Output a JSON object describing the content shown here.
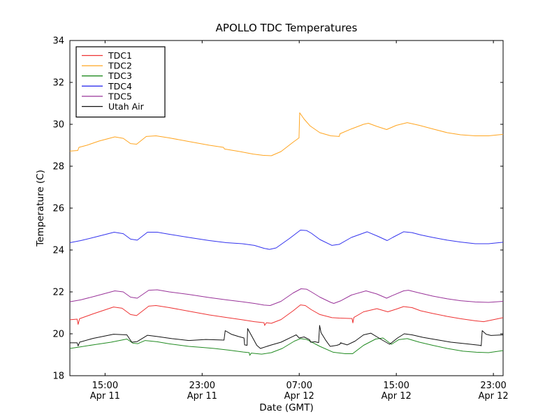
{
  "window": {
    "title": "APOLLO TDC Temperatures"
  },
  "colors": {
    "background": "#ffffff",
    "axis": "#000000",
    "text": "#000000",
    "tdc1": "#ee3333",
    "tdc2": "#ffa520",
    "tdc3": "#228b22",
    "tdc4": "#3333ee",
    "tdc5": "#993399",
    "utah_air": "#111111"
  },
  "chart_data": {
    "type": "line",
    "title": "APOLLO TDC Temperatures",
    "xlabel": "Date (GMT)",
    "ylabel": "Temperature (C)",
    "x_unit": "hours since Apr 11 00:00 GMT",
    "xlim": [
      12.1,
      47.8
    ],
    "ylim": [
      18,
      34
    ],
    "grid": false,
    "legend_position": "upper left",
    "yticks": [
      18,
      20,
      22,
      24,
      26,
      28,
      30,
      32,
      34
    ],
    "xticks": [
      {
        "value": 15,
        "label": "15:00",
        "sublabel": "Apr 11"
      },
      {
        "value": 23,
        "label": "23:00",
        "sublabel": "Apr 11"
      },
      {
        "value": 31,
        "label": "07:00",
        "sublabel": "Apr 12"
      },
      {
        "value": 39,
        "label": "15:00",
        "sublabel": "Apr 12"
      },
      {
        "value": 47,
        "label": "23:00",
        "sublabel": "Apr 12"
      }
    ],
    "series": [
      {
        "name": "TDC1",
        "color": "#ee3333",
        "points": [
          [
            12.1,
            20.67
          ],
          [
            12.7,
            20.7
          ],
          [
            12.78,
            20.45
          ],
          [
            12.9,
            20.72
          ],
          [
            14.0,
            20.95
          ],
          [
            15.7,
            21.28
          ],
          [
            16.4,
            21.22
          ],
          [
            17.1,
            20.92
          ],
          [
            17.6,
            20.87
          ],
          [
            18.6,
            21.32
          ],
          [
            19.2,
            21.35
          ],
          [
            20.3,
            21.25
          ],
          [
            21.9,
            21.08
          ],
          [
            23.6,
            20.9
          ],
          [
            25.0,
            20.78
          ],
          [
            26.3,
            20.67
          ],
          [
            27.3,
            20.58
          ],
          [
            28.1,
            20.53
          ],
          [
            28.15,
            20.4
          ],
          [
            28.3,
            20.53
          ],
          [
            28.7,
            20.5
          ],
          [
            29.5,
            20.68
          ],
          [
            30.5,
            21.1
          ],
          [
            31.1,
            21.38
          ],
          [
            31.5,
            21.35
          ],
          [
            32.0,
            21.15
          ],
          [
            32.7,
            20.92
          ],
          [
            33.7,
            20.77
          ],
          [
            34.3,
            20.75
          ],
          [
            35.35,
            20.73
          ],
          [
            35.42,
            20.52
          ],
          [
            35.5,
            20.78
          ],
          [
            36.3,
            21.05
          ],
          [
            37.4,
            21.2
          ],
          [
            38.3,
            21.05
          ],
          [
            39.0,
            21.18
          ],
          [
            39.6,
            21.3
          ],
          [
            40.3,
            21.25
          ],
          [
            41.0,
            21.1
          ],
          [
            42.0,
            20.97
          ],
          [
            43.2,
            20.83
          ],
          [
            44.3,
            20.72
          ],
          [
            45.5,
            20.62
          ],
          [
            46.2,
            20.58
          ],
          [
            46.8,
            20.65
          ],
          [
            47.8,
            20.77
          ]
        ]
      },
      {
        "name": "TDC2",
        "color": "#ffa520",
        "points": [
          [
            12.1,
            28.72
          ],
          [
            12.75,
            28.75
          ],
          [
            12.85,
            28.9
          ],
          [
            13.5,
            29.0
          ],
          [
            14.5,
            29.2
          ],
          [
            15.8,
            29.4
          ],
          [
            16.5,
            29.33
          ],
          [
            17.1,
            29.08
          ],
          [
            17.6,
            29.05
          ],
          [
            18.4,
            29.42
          ],
          [
            19.2,
            29.45
          ],
          [
            20.3,
            29.35
          ],
          [
            21.9,
            29.18
          ],
          [
            23.6,
            29.0
          ],
          [
            24.75,
            28.9
          ],
          [
            24.85,
            28.82
          ],
          [
            26.1,
            28.7
          ],
          [
            27.2,
            28.58
          ],
          [
            28.0,
            28.52
          ],
          [
            28.7,
            28.5
          ],
          [
            29.5,
            28.7
          ],
          [
            30.5,
            29.15
          ],
          [
            30.98,
            29.35
          ],
          [
            31.04,
            30.55
          ],
          [
            31.4,
            30.25
          ],
          [
            31.9,
            29.92
          ],
          [
            32.7,
            29.6
          ],
          [
            33.6,
            29.45
          ],
          [
            34.3,
            29.42
          ],
          [
            34.36,
            29.55
          ],
          [
            35.3,
            29.78
          ],
          [
            36.3,
            30.0
          ],
          [
            36.7,
            30.05
          ],
          [
            37.4,
            29.9
          ],
          [
            38.2,
            29.75
          ],
          [
            39.0,
            29.95
          ],
          [
            39.9,
            30.08
          ],
          [
            40.9,
            29.95
          ],
          [
            42.0,
            29.78
          ],
          [
            43.2,
            29.6
          ],
          [
            44.3,
            29.5
          ],
          [
            45.5,
            29.45
          ],
          [
            46.6,
            29.45
          ],
          [
            47.8,
            29.52
          ]
        ]
      },
      {
        "name": "TDC3",
        "color": "#228b22",
        "points": [
          [
            12.1,
            19.3
          ],
          [
            13.0,
            19.38
          ],
          [
            14.1,
            19.48
          ],
          [
            15.5,
            19.6
          ],
          [
            16.8,
            19.75
          ],
          [
            17.3,
            19.55
          ],
          [
            17.7,
            19.53
          ],
          [
            18.3,
            19.68
          ],
          [
            19.3,
            19.62
          ],
          [
            20.3,
            19.52
          ],
          [
            21.9,
            19.4
          ],
          [
            23.0,
            19.35
          ],
          [
            24.0,
            19.3
          ],
          [
            25.2,
            19.22
          ],
          [
            26.4,
            19.13
          ],
          [
            26.88,
            19.1
          ],
          [
            26.92,
            18.97
          ],
          [
            27.05,
            19.08
          ],
          [
            27.9,
            19.03
          ],
          [
            28.7,
            19.1
          ],
          [
            29.6,
            19.3
          ],
          [
            30.6,
            19.65
          ],
          [
            31.1,
            19.77
          ],
          [
            31.6,
            19.73
          ],
          [
            32.7,
            19.4
          ],
          [
            33.8,
            19.12
          ],
          [
            34.8,
            19.05
          ],
          [
            35.4,
            19.05
          ],
          [
            36.3,
            19.45
          ],
          [
            37.3,
            19.75
          ],
          [
            37.9,
            19.8
          ],
          [
            38.6,
            19.5
          ],
          [
            39.2,
            19.72
          ],
          [
            39.9,
            19.77
          ],
          [
            40.9,
            19.6
          ],
          [
            42.0,
            19.45
          ],
          [
            43.2,
            19.3
          ],
          [
            44.5,
            19.17
          ],
          [
            45.6,
            19.12
          ],
          [
            46.6,
            19.1
          ],
          [
            47.8,
            19.2
          ]
        ]
      },
      {
        "name": "TDC4",
        "color": "#3333ee",
        "points": [
          [
            12.1,
            24.35
          ],
          [
            13.0,
            24.45
          ],
          [
            14.2,
            24.62
          ],
          [
            15.75,
            24.85
          ],
          [
            16.5,
            24.78
          ],
          [
            17.1,
            24.52
          ],
          [
            17.65,
            24.47
          ],
          [
            18.5,
            24.85
          ],
          [
            19.3,
            24.85
          ],
          [
            20.3,
            24.75
          ],
          [
            21.9,
            24.6
          ],
          [
            23.6,
            24.45
          ],
          [
            25.0,
            24.35
          ],
          [
            26.3,
            24.3
          ],
          [
            27.3,
            24.22
          ],
          [
            28.1,
            24.08
          ],
          [
            28.55,
            24.03
          ],
          [
            29.1,
            24.1
          ],
          [
            30.2,
            24.55
          ],
          [
            31.1,
            24.95
          ],
          [
            31.6,
            24.93
          ],
          [
            32.0,
            24.8
          ],
          [
            32.7,
            24.5
          ],
          [
            33.7,
            24.22
          ],
          [
            34.3,
            24.27
          ],
          [
            35.3,
            24.6
          ],
          [
            36.6,
            24.87
          ],
          [
            37.5,
            24.65
          ],
          [
            38.25,
            24.45
          ],
          [
            38.7,
            24.6
          ],
          [
            39.6,
            24.87
          ],
          [
            40.3,
            24.83
          ],
          [
            41.0,
            24.72
          ],
          [
            42.0,
            24.6
          ],
          [
            43.2,
            24.47
          ],
          [
            44.3,
            24.38
          ],
          [
            45.5,
            24.3
          ],
          [
            46.6,
            24.3
          ],
          [
            47.8,
            24.37
          ]
        ]
      },
      {
        "name": "TDC5",
        "color": "#993399",
        "points": [
          [
            12.1,
            21.53
          ],
          [
            13.0,
            21.62
          ],
          [
            14.2,
            21.8
          ],
          [
            15.8,
            22.05
          ],
          [
            16.5,
            22.0
          ],
          [
            17.1,
            21.75
          ],
          [
            17.65,
            21.7
          ],
          [
            18.6,
            22.08
          ],
          [
            19.3,
            22.1
          ],
          [
            20.3,
            22.0
          ],
          [
            21.9,
            21.88
          ],
          [
            23.6,
            21.73
          ],
          [
            25.0,
            21.62
          ],
          [
            26.3,
            21.53
          ],
          [
            27.3,
            21.45
          ],
          [
            28.1,
            21.37
          ],
          [
            28.6,
            21.35
          ],
          [
            29.5,
            21.55
          ],
          [
            30.5,
            21.95
          ],
          [
            31.15,
            22.15
          ],
          [
            31.6,
            22.13
          ],
          [
            32.0,
            22.0
          ],
          [
            32.7,
            21.75
          ],
          [
            33.6,
            21.5
          ],
          [
            33.85,
            21.45
          ],
          [
            34.4,
            21.57
          ],
          [
            35.3,
            21.85
          ],
          [
            36.5,
            22.05
          ],
          [
            37.4,
            21.9
          ],
          [
            38.2,
            21.7
          ],
          [
            38.65,
            21.82
          ],
          [
            39.6,
            22.05
          ],
          [
            40.0,
            22.08
          ],
          [
            40.9,
            21.95
          ],
          [
            42.0,
            21.8
          ],
          [
            43.2,
            21.67
          ],
          [
            44.3,
            21.58
          ],
          [
            45.5,
            21.52
          ],
          [
            46.6,
            21.5
          ],
          [
            47.8,
            21.55
          ]
        ]
      },
      {
        "name": "Utah Air",
        "color": "#111111",
        "points": [
          [
            12.1,
            19.57
          ],
          [
            12.7,
            19.57
          ],
          [
            12.78,
            19.42
          ],
          [
            12.9,
            19.6
          ],
          [
            14.0,
            19.78
          ],
          [
            15.7,
            19.98
          ],
          [
            16.8,
            19.95
          ],
          [
            17.2,
            19.6
          ],
          [
            17.65,
            19.63
          ],
          [
            18.5,
            19.93
          ],
          [
            19.3,
            19.87
          ],
          [
            20.5,
            19.77
          ],
          [
            21.9,
            19.68
          ],
          [
            23.3,
            19.73
          ],
          [
            24.8,
            19.7
          ],
          [
            24.9,
            20.15
          ],
          [
            25.4,
            19.98
          ],
          [
            26.0,
            19.87
          ],
          [
            26.45,
            19.8
          ],
          [
            26.5,
            19.47
          ],
          [
            26.7,
            19.45
          ],
          [
            26.75,
            20.25
          ],
          [
            27.1,
            19.88
          ],
          [
            27.5,
            19.45
          ],
          [
            27.8,
            19.3
          ],
          [
            28.6,
            19.45
          ],
          [
            29.5,
            19.6
          ],
          [
            30.5,
            19.88
          ],
          [
            30.75,
            19.95
          ],
          [
            31.0,
            19.8
          ],
          [
            31.4,
            19.85
          ],
          [
            31.85,
            19.72
          ],
          [
            31.95,
            19.6
          ],
          [
            32.3,
            19.62
          ],
          [
            32.6,
            19.58
          ],
          [
            32.68,
            20.4
          ],
          [
            32.8,
            20.05
          ],
          [
            33.2,
            19.68
          ],
          [
            33.55,
            19.4
          ],
          [
            34.1,
            19.45
          ],
          [
            34.35,
            19.5
          ],
          [
            34.4,
            19.57
          ],
          [
            34.95,
            19.47
          ],
          [
            35.6,
            19.65
          ],
          [
            36.3,
            19.95
          ],
          [
            36.9,
            20.03
          ],
          [
            37.7,
            19.75
          ],
          [
            38.45,
            19.5
          ],
          [
            39.1,
            19.8
          ],
          [
            39.65,
            20.0
          ],
          [
            40.3,
            19.95
          ],
          [
            41.2,
            19.83
          ],
          [
            42.2,
            19.73
          ],
          [
            43.5,
            19.6
          ],
          [
            44.8,
            19.52
          ],
          [
            45.9,
            19.45
          ],
          [
            46.0,
            19.43
          ],
          [
            46.08,
            20.15
          ],
          [
            46.4,
            19.98
          ],
          [
            46.8,
            19.92
          ],
          [
            47.8,
            19.95
          ]
        ]
      }
    ],
    "legend_entries": [
      "TDC1",
      "TDC2",
      "TDC3",
      "TDC4",
      "TDC5",
      "Utah Air"
    ]
  }
}
